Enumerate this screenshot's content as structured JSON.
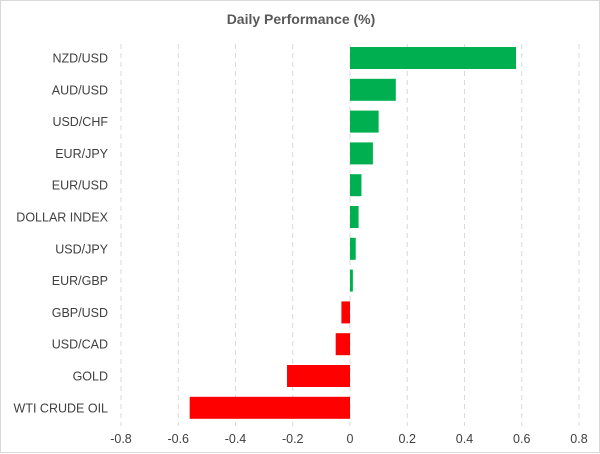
{
  "chart_data": {
    "type": "bar",
    "orientation": "horizontal",
    "title": "Daily Performance (%)",
    "xlabel": "",
    "ylabel": "",
    "categories": [
      "NZD/USD",
      "AUD/USD",
      "USD/CHF",
      "EUR/JPY",
      "EUR/USD",
      "DOLLAR INDEX",
      "USD/JPY",
      "EUR/GBP",
      "GBP/USD",
      "USD/CAD",
      "GOLD",
      "WTI CRUDE OIL"
    ],
    "values": [
      0.58,
      0.16,
      0.1,
      0.08,
      0.04,
      0.03,
      0.02,
      0.01,
      -0.03,
      -0.05,
      -0.22,
      -0.56
    ],
    "xlim": [
      -0.8,
      0.8
    ],
    "xticks": [
      -0.8,
      -0.6,
      -0.4,
      -0.2,
      0,
      0.2,
      0.4,
      0.6,
      0.8
    ],
    "xtick_labels": [
      "-0.8",
      "-0.6",
      "-0.4",
      "-0.2",
      "0",
      "0.2",
      "0.4",
      "0.6",
      "0.8"
    ],
    "grid": "vertical dashed",
    "colors": {
      "positive": "#00b050",
      "negative": "#ff0000"
    }
  }
}
